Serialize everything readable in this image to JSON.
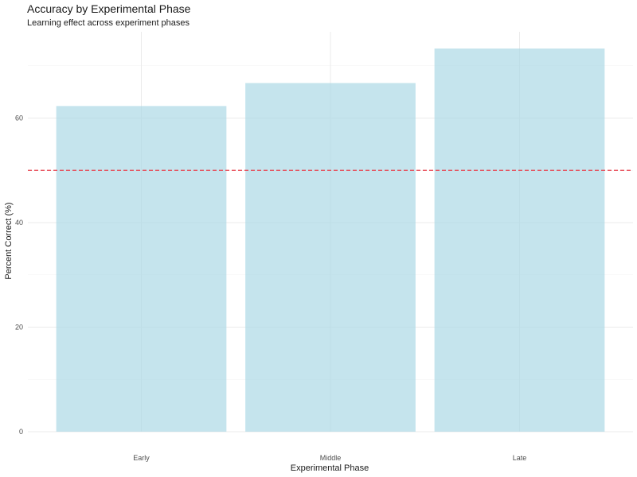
{
  "chart_data": {
    "type": "bar",
    "title": "Accuracy by Experimental Phase",
    "subtitle": "Learning effect across experiment phases",
    "xlabel": "Experimental Phase",
    "ylabel": "Percent Correct (%)",
    "categories": [
      "Early",
      "Middle",
      "Late"
    ],
    "values": [
      62.3,
      66.7,
      73.3
    ],
    "ylim": [
      0,
      76.5
    ],
    "yticks": [
      0,
      20,
      40,
      60
    ],
    "reference_line": {
      "y": 50,
      "style": "dashed",
      "color": "#e8424e"
    },
    "bar_color": "#add8e6",
    "grid": true,
    "legend": "none"
  }
}
